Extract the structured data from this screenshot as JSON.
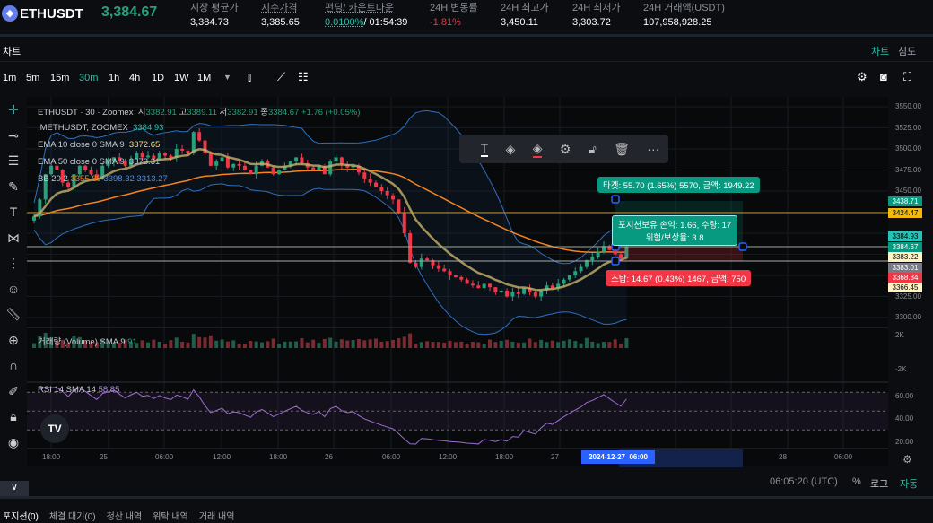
{
  "header": {
    "symbol": "ETHUSDT",
    "last_price": "3,384.67",
    "stats": [
      {
        "label": "시장 평균가",
        "value": "3,384.73"
      },
      {
        "label": "지수가격",
        "value": "3,385.65"
      },
      {
        "label": "펀딩/ 카운트다운",
        "value": "0.0100%",
        "value2": "/ 01:54:39"
      },
      {
        "label": "24H 변동률",
        "value": "-1.81%"
      },
      {
        "label": "24H 최고가",
        "value": "3,450.11"
      },
      {
        "label": "24H 최저가",
        "value": "3,303.72"
      },
      {
        "label": "24H 거래액(USDT)",
        "value": "107,958,928.25"
      }
    ]
  },
  "subbar": {
    "title": "차트",
    "tab_chart": "차트",
    "tab_depth": "심도"
  },
  "toolbar": {
    "timeframes": [
      "1m",
      "5m",
      "15m",
      "30m",
      "1h",
      "4h",
      "1D",
      "1W",
      "1M"
    ],
    "active": "30m"
  },
  "legend": {
    "line1": "ETHUSDT · 30 · Zoomex",
    "o_l": "시",
    "o": "3382.91",
    "h_l": "고",
    "h": "3389.11",
    "l_l": "저",
    "l": "3382.91",
    "c_l": "종",
    "c": "3384.67",
    "chg": "+1.76 (+0.05%)",
    "index": ".METHUSDT, ZOOMEX",
    "index_v": "3384.93",
    "ema10": "EMA 10 close 0 SMA 9",
    "ema10_v": "3372.65",
    "ema50": "EMA 50 close 0 SMA 9",
    "ema50_v": "3373.31",
    "bb": "BB 20 2",
    "bb_mid": "3355.80",
    "bb_up": "3398.32",
    "bb_low": "3313.27",
    "volume": "거래량 (Volume) SMA 9",
    "volume_v": "91",
    "rsi": "RSI 14 SMA 14",
    "rsi_v": "58.85"
  },
  "position": {
    "target": "타겟: 55.70 (1.65%) 5570, 금액: 1949.22",
    "pnl": "포지션보유 손익: 1.66, 수량: 17",
    "rr": "위험/보상율: 3.8",
    "stop": "스탑: 14.67 (0.43%) 1467, 금액: 750"
  },
  "price_axis": [
    "3550.00",
    "3525.00",
    "3500.00",
    "3475.00",
    "3450.00",
    "3325.00",
    "3300.00"
  ],
  "price_tags": [
    {
      "v": "3438.71",
      "bg": "#089981",
      "fg": "#fff"
    },
    {
      "v": "3424.47",
      "bg": "#f0b90b",
      "fg": "#000"
    },
    {
      "v": "3384.93",
      "bg": "#22c4b8",
      "fg": "#000"
    },
    {
      "v": "3384.67",
      "bg": "#089981",
      "fg": "#fff"
    },
    {
      "v": "3383.22",
      "bg": "#fff3c4",
      "fg": "#000"
    },
    {
      "v": "3383.01",
      "bg": "#787b86",
      "fg": "#fff"
    },
    {
      "v": "3368.34",
      "bg": "#f23645",
      "fg": "#fff"
    },
    {
      "v": "3366.45",
      "bg": "#fff3c4",
      "fg": "#000"
    }
  ],
  "volume_axis": [
    "2K",
    "-2K"
  ],
  "rsi_axis": [
    "60.00",
    "40.00",
    "20.00"
  ],
  "time_axis": [
    "18:00",
    "25",
    "06:00",
    "12:00",
    "18:00",
    "26",
    "06:00",
    "12:00",
    "18:00",
    "27",
    "12:00",
    "18:00",
    "28",
    "06:00"
  ],
  "time_cursor": {
    "date": "2024-12-27",
    "time": "06:00"
  },
  "footer": {
    "clock": "06:05:20 (UTC)",
    "pct": "%",
    "log": "로그",
    "auto": "자동"
  },
  "bottom_tabs": [
    "포지션(0)",
    "체결 대기(0)",
    "청산 내역",
    "위탁 내역",
    "거래 내역"
  ],
  "colors": {
    "up": "#26a17b",
    "down": "#f23645",
    "ema10": "#c7b36b",
    "ema50": "#f5841f",
    "bb": "#2f6fbf",
    "rsi": "#9b6fd0",
    "accent": "#2bc0a8"
  },
  "chart_data": {
    "type": "candlestick",
    "interval": "30m",
    "closes": [
      3420,
      3440,
      3470,
      3480,
      3475,
      3460,
      3455,
      3470,
      3480,
      3475,
      3470,
      3465,
      3480,
      3485,
      3490,
      3485,
      3480,
      3488,
      3495,
      3490,
      3492,
      3488,
      3495,
      3492,
      3490,
      3500,
      3498,
      3495,
      3520,
      3510,
      3495,
      3480,
      3485,
      3490,
      3478,
      3482,
      3480,
      3475,
      3470,
      3480,
      3485,
      3478,
      3470,
      3475,
      3480,
      3485,
      3490,
      3483,
      3478,
      3475,
      3480,
      3470,
      3485,
      3490,
      3482,
      3478,
      3480,
      3472,
      3465,
      3460,
      3455,
      3450,
      3445,
      3440,
      3425,
      3400,
      3365,
      3360,
      3370,
      3368,
      3362,
      3358,
      3355,
      3350,
      3348,
      3345,
      3340,
      3338,
      3335,
      3340,
      3336,
      3330,
      3332,
      3325,
      3330,
      3328,
      3335,
      3330,
      3325,
      3332,
      3338,
      3335,
      3340,
      3345,
      3350,
      3355,
      3360,
      3368,
      3372,
      3378,
      3385,
      3380,
      3375,
      3370,
      3384.67
    ],
    "ylim": [
      3290,
      3560
    ]
  }
}
